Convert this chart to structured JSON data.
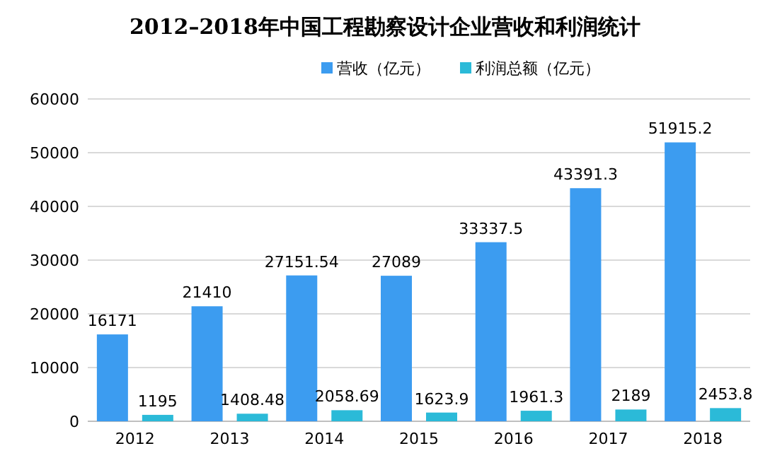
{
  "chart_data": {
    "type": "bar",
    "title": "2012–2018年中国工程勘察设计企业营收和利润统计",
    "categories": [
      "2012",
      "2013",
      "2014",
      "2015",
      "2016",
      "2017",
      "2018"
    ],
    "series": [
      {
        "name": "营收（亿元）",
        "color": "#3c9cf0",
        "values": [
          16171,
          21410,
          27151.54,
          27089,
          33337.5,
          43391.3,
          51915.2
        ]
      },
      {
        "name": "利润总额（亿元）",
        "color": "#2bbad8",
        "values": [
          1195,
          1408.48,
          2058.69,
          1623.9,
          1961.3,
          2189,
          2453.8
        ]
      }
    ],
    "ylim": [
      0,
      60000
    ],
    "yticks": [
      0,
      10000,
      20000,
      30000,
      40000,
      50000,
      60000
    ],
    "grid": "y",
    "legend": "top",
    "data_labels": true
  }
}
